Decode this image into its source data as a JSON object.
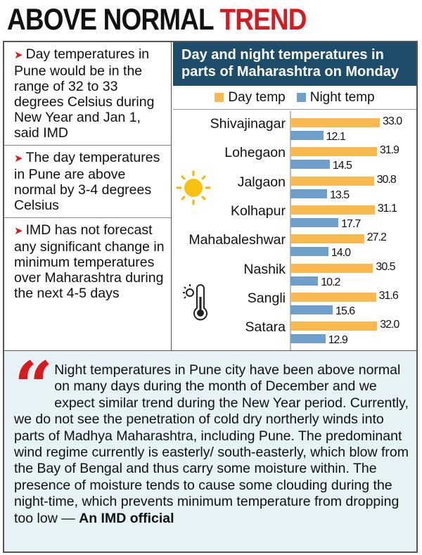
{
  "title": {
    "part1": "ABOVE NORMAL",
    "part2": "TREND"
  },
  "bullets": [
    "Day temperatures in Pune would be in the range of 32 to 33 degrees Celsius during New Year and Jan 1, said IMD",
    "The day temperatures in Pune are above normal by 3-4 degrees Celsius",
    "IMD has not forecast any significant change in minimum temperatures over Maharashtra during the next 4-5 days"
  ],
  "bullet_marker": "➤",
  "icons": [
    "sun-icon",
    "thermometer-icon"
  ],
  "quote": {
    "mark": "“",
    "text": "Night temperatures in Pune city have been above normal on many days during the month of December and we expect similar trend during the New Year period. Currently, we do not see the penetration of cold dry northerly winds into parts of Madhya Maharashtra, including Pune. The predominant wind regime currently is easterly/ south-easterly, which blow from the Bay of Bengal and thus carry some moisture within. The presence of moisture tends to cause some clouding during the night-time, which prevents minimum temperature from dropping too low — ",
    "source": "An IMD official"
  },
  "chart_data": {
    "type": "bar",
    "orientation": "horizontal",
    "title": "Day and night temperatures in parts of Maharashtra on Monday",
    "categories": [
      "Shivajinagar",
      "Lohegaon",
      "Jalgaon",
      "Kolhapur",
      "Mahabaleshwar",
      "Nashik",
      "Sangli",
      "Satara"
    ],
    "series": [
      {
        "name": "Day temp",
        "color": "#f9b94f",
        "values": [
          33.0,
          31.9,
          30.8,
          31.1,
          27.2,
          30.5,
          31.6,
          32.0
        ]
      },
      {
        "name": "Night temp",
        "color": "#6f9fcb",
        "values": [
          12.1,
          14.5,
          13.5,
          17.7,
          14.0,
          10.2,
          15.6,
          12.9
        ]
      }
    ],
    "legend": "top",
    "grid": false,
    "colors": {
      "header": "#1d4d6b",
      "accent": "#d71920"
    }
  }
}
